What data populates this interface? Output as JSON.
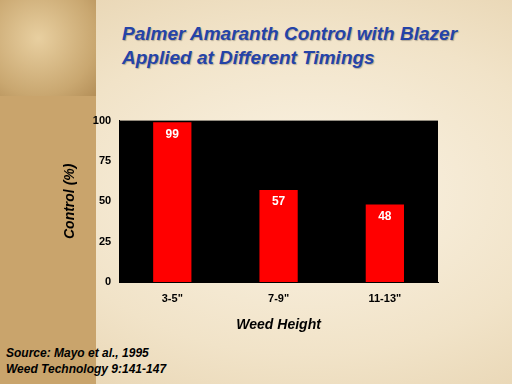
{
  "chart_data": {
    "type": "bar",
    "title": [
      "Palmer Amaranth Control with Blazer",
      "Applied at Different Timings"
    ],
    "x_label": "Weed Height",
    "y_label": "Control (%)",
    "categories": [
      "3-5\"",
      "7-9\"",
      "11-13\""
    ],
    "values": [
      99,
      57,
      48
    ],
    "color": "#ff0000",
    "ylim": [
      0,
      100
    ],
    "yticks": [
      0,
      25,
      50,
      75,
      100
    ],
    "grid": false,
    "data_labels": true,
    "annotations": [
      "Source: Mayo et al., 1995",
      "Weed Technology 9:141-147"
    ]
  }
}
